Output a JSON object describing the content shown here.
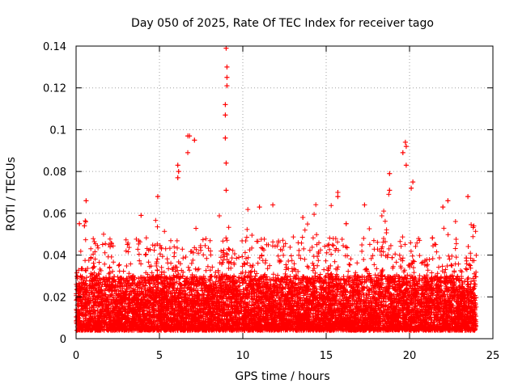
{
  "chart_data": {
    "type": "scatter",
    "title": "Day 050 of 2025, Rate Of TEC Index for receiver tago",
    "xlabel": "GPS time / hours",
    "ylabel": "ROTI / TECUs",
    "xlim": [
      0,
      25
    ],
    "ylim": [
      0,
      0.14
    ],
    "x_ticks": [
      "0",
      "5",
      "10",
      "15",
      "20",
      "25"
    ],
    "y_ticks": [
      "0",
      "0.02",
      "0.04",
      "0.06",
      "0.08",
      "0.1",
      "0.12",
      "0.14"
    ],
    "grid": true,
    "marker": "+",
    "series": [
      {
        "color": "#ff0000",
        "spike_points": [
          {
            "x": 9.0,
            "y": 0.139
          },
          {
            "x": 9.05,
            "y": 0.13
          },
          {
            "x": 9.05,
            "y": 0.125
          },
          {
            "x": 9.05,
            "y": 0.121
          },
          {
            "x": 8.95,
            "y": 0.112
          },
          {
            "x": 8.95,
            "y": 0.107
          },
          {
            "x": 8.95,
            "y": 0.096
          },
          {
            "x": 9.0,
            "y": 0.084
          },
          {
            "x": 9.0,
            "y": 0.071
          },
          {
            "x": 6.7,
            "y": 0.097
          },
          {
            "x": 6.8,
            "y": 0.097
          },
          {
            "x": 7.1,
            "y": 0.095
          },
          {
            "x": 6.7,
            "y": 0.089
          },
          {
            "x": 6.1,
            "y": 0.083
          },
          {
            "x": 6.15,
            "y": 0.08
          },
          {
            "x": 6.1,
            "y": 0.077
          },
          {
            "x": 19.75,
            "y": 0.094
          },
          {
            "x": 19.8,
            "y": 0.092
          },
          {
            "x": 19.6,
            "y": 0.089
          },
          {
            "x": 19.8,
            "y": 0.083
          },
          {
            "x": 18.8,
            "y": 0.079
          },
          {
            "x": 20.2,
            "y": 0.075
          },
          {
            "x": 20.1,
            "y": 0.072
          },
          {
            "x": 18.8,
            "y": 0.071
          },
          {
            "x": 15.7,
            "y": 0.07
          },
          {
            "x": 15.7,
            "y": 0.068
          },
          {
            "x": 23.5,
            "y": 0.068
          },
          {
            "x": 4.9,
            "y": 0.068
          },
          {
            "x": 0.6,
            "y": 0.066
          },
          {
            "x": 17.3,
            "y": 0.064
          },
          {
            "x": 11.0,
            "y": 0.063
          },
          {
            "x": 11.8,
            "y": 0.064
          },
          {
            "x": 0.2,
            "y": 0.055
          },
          {
            "x": 0.5,
            "y": 0.054
          },
          {
            "x": 3.9,
            "y": 0.059
          },
          {
            "x": 22.3,
            "y": 0.066
          },
          {
            "x": 22.0,
            "y": 0.063
          },
          {
            "x": 13.6,
            "y": 0.058
          },
          {
            "x": 16.2,
            "y": 0.055
          }
        ],
        "baseline": {
          "description": "dense band of + markers",
          "typical_range": [
            0.004,
            0.03
          ],
          "x_range": [
            0,
            24
          ]
        }
      }
    ]
  }
}
